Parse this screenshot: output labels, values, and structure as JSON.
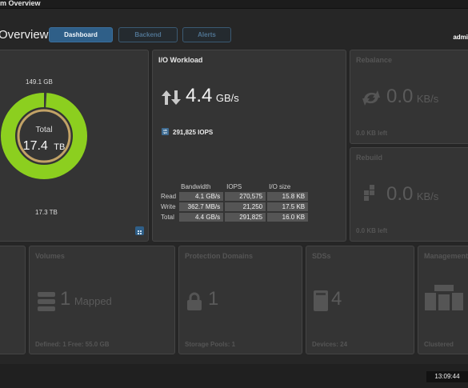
{
  "window": {
    "title": "m Overview"
  },
  "header": {
    "page_title": "Overview",
    "tabs": [
      {
        "label": "Dashboard",
        "active": true
      },
      {
        "label": "Backend",
        "active": false
      },
      {
        "label": "Alerts",
        "active": false
      }
    ],
    "user": "admi"
  },
  "capacity": {
    "top_label": "149.1 GB",
    "center_label": "Total",
    "total_value": "17.4",
    "total_unit": "TB",
    "bottom_label": "17.3 TB",
    "used_fraction": 0.99,
    "ring_color": "#8ccf1f",
    "ring_inner_color": "#c2a266"
  },
  "io_workload": {
    "title": "I/O Workload",
    "bandwidth_value": "4.4",
    "bandwidth_unit": "GB/s",
    "iops_text": "291,825 IOPS",
    "table": {
      "headers": [
        "Bandwidth",
        "IOPS",
        "I/O size"
      ],
      "rows": [
        {
          "label": "Read",
          "values": [
            "4.1 GB/s",
            "270,575",
            "15.8 KB"
          ]
        },
        {
          "label": "Write",
          "values": [
            "362.7 MB/s",
            "21,250",
            "17.5 KB"
          ]
        },
        {
          "label": "Total",
          "values": [
            "4.4 GB/s",
            "291,825",
            "16.0 KB"
          ]
        }
      ]
    }
  },
  "rebalance": {
    "title": "Rebalance",
    "value": "0.0",
    "unit": "KB/s",
    "footer": "0.0 KB left"
  },
  "rebuild": {
    "title": "Rebuild",
    "value": "0.0",
    "unit": "KB/s",
    "footer": "0.0 KB left"
  },
  "volumes": {
    "title": "Volumes",
    "count": "1",
    "status": "Mapped",
    "footer": "Defined: 1  Free: 55.0 GB"
  },
  "protection_domains": {
    "title": "Protection Domains",
    "count": "1",
    "footer": "Storage Pools: 1"
  },
  "sdss": {
    "title": "SDSs",
    "count": "4",
    "footer": "Devices: 24"
  },
  "management": {
    "title": "Management",
    "footer": "Clustered"
  },
  "status_bar": {
    "clock": "13:09:44"
  }
}
